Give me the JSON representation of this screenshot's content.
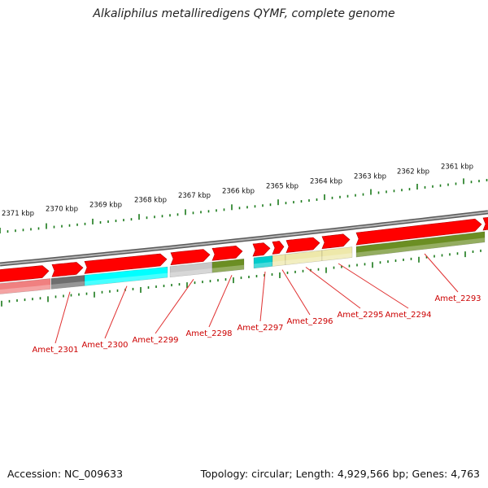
{
  "title": "Alkaliphilus metalliredigens QYMF, complete genome",
  "footer": {
    "accession": "Accession: NC_009633",
    "summary": "Topology: circular; Length: 4,929,566 bp; Genes: 4,763"
  },
  "colors": {
    "backbone": "#8a8a8a",
    "forward_cds": "#ff0000",
    "tick": "#1a7a1a",
    "tick_label": "#111111",
    "gene_label": "#cc0000",
    "leader_line": "#e03030"
  },
  "scale_labels": [
    "2371 kbp",
    "2370 kbp",
    "2369 kbp",
    "2368 kbp",
    "2367 kbp",
    "2366 kbp",
    "2365 kbp",
    "2364 kbp",
    "2363 kbp",
    "2362 kbp",
    "2361 kbp"
  ],
  "gene_labels": [
    "Amet_2301",
    "Amet_2300",
    "Amet_2299",
    "Amet_2298",
    "Amet_2297",
    "Amet_2296",
    "Amet_2295",
    "Amet_2294",
    "Amet_2293"
  ],
  "category_colors": [
    "#f08080",
    "#6e6e6e",
    "#00ffff",
    "#c8c8c8",
    "#6b8e23",
    "#00cccc",
    "#eee8aa",
    "#eee8aa",
    "#6b8e23"
  ]
}
